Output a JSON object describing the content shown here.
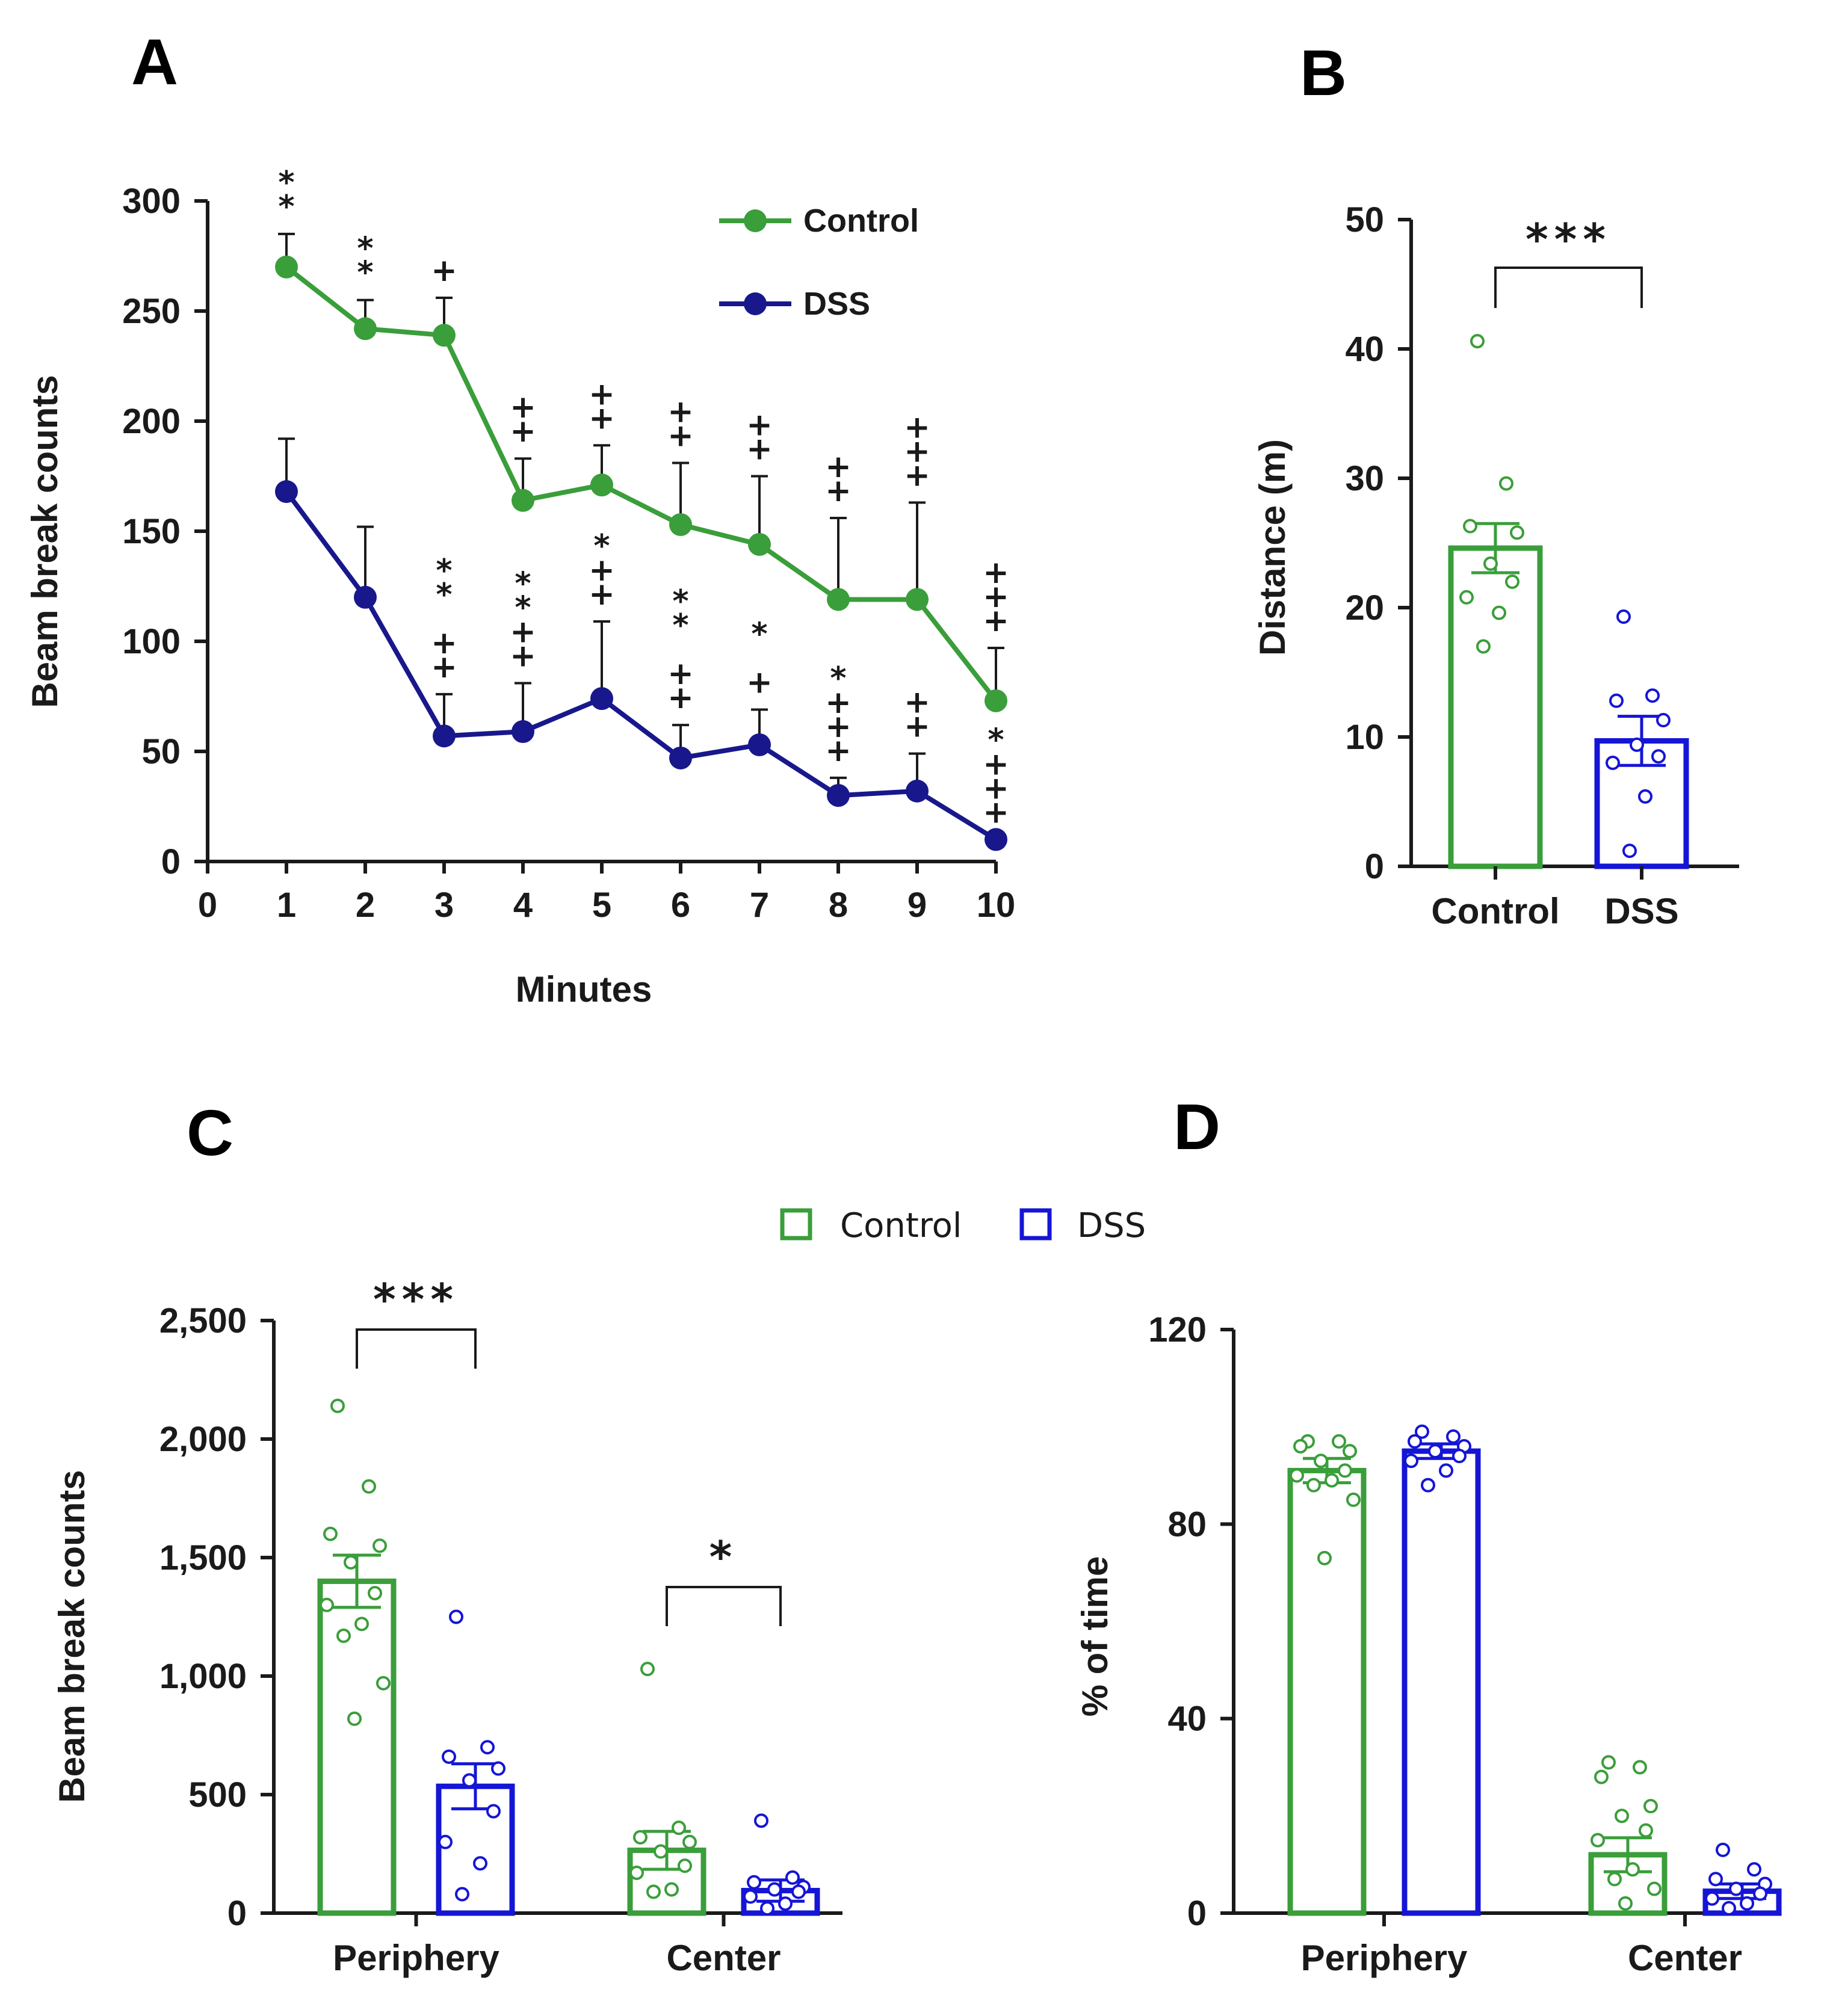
{
  "colors": {
    "control": "#3a9e3a",
    "dss": "#18188c",
    "dss_bar": "#1515d6",
    "axis": "#1a1a1a"
  },
  "chart_data": [
    {
      "panel": "A",
      "type": "line",
      "xlabel": "Minutes",
      "ylabel": "Beam break counts",
      "xlim": [
        0,
        10
      ],
      "ylim": [
        0,
        300
      ],
      "x_ticks": [
        "0",
        "1",
        "2",
        "3",
        "4",
        "5",
        "6",
        "7",
        "8",
        "9",
        "10"
      ],
      "y_ticks": [
        "0",
        "50",
        "100",
        "150",
        "200",
        "250",
        "300"
      ],
      "legend": {
        "placement": "top-right"
      },
      "x": [
        1,
        2,
        3,
        4,
        5,
        6,
        7,
        8,
        9,
        10
      ],
      "series": [
        {
          "name": "Control",
          "color": "#3a9e3a",
          "values": [
            270,
            242,
            239,
            164,
            171,
            153,
            144,
            119,
            119,
            73
          ],
          "sem": [
            15,
            13,
            17,
            19,
            18,
            28,
            31,
            37,
            44,
            24
          ]
        },
        {
          "name": "DSS",
          "color": "#18188c",
          "values": [
            168,
            120,
            57,
            59,
            74,
            47,
            53,
            30,
            32,
            10
          ],
          "sem": [
            24,
            32,
            19,
            22,
            35,
            15,
            16,
            8,
            17,
            0
          ]
        }
      ],
      "annotations": [
        {
          "x": 1,
          "lines": [
            "*",
            "*"
          ],
          "near": "control"
        },
        {
          "x": 2,
          "lines": [
            "*",
            "*"
          ],
          "near": "control"
        },
        {
          "x": 3,
          "lines": [
            "+"
          ],
          "near": "control"
        },
        {
          "x": 3,
          "lines": [
            "*",
            "*",
            "",
            "+",
            "+"
          ],
          "near": "dss"
        },
        {
          "x": 4,
          "lines": [
            "+",
            "+"
          ],
          "near": "control"
        },
        {
          "x": 4,
          "lines": [
            "*",
            "*",
            "+",
            "+"
          ],
          "near": "dss"
        },
        {
          "x": 5,
          "lines": [
            "+",
            "+"
          ],
          "near": "control"
        },
        {
          "x": 5,
          "lines": [
            "*",
            "+",
            "+"
          ],
          "near": "dss"
        },
        {
          "x": 6,
          "lines": [
            "+",
            "+"
          ],
          "near": "control"
        },
        {
          "x": 6,
          "lines": [
            "*",
            "*",
            "",
            "+",
            "+"
          ],
          "near": "dss"
        },
        {
          "x": 7,
          "lines": [
            "+",
            "+"
          ],
          "near": "control"
        },
        {
          "x": 7,
          "lines": [
            "*",
            "",
            "+"
          ],
          "near": "dss"
        },
        {
          "x": 8,
          "lines": [
            "+",
            "+"
          ],
          "near": "control"
        },
        {
          "x": 8,
          "lines": [
            "*",
            "+",
            "+",
            "+"
          ],
          "near": "dss"
        },
        {
          "x": 9,
          "lines": [
            "+",
            "+",
            "+"
          ],
          "near": "control"
        },
        {
          "x": 9,
          "lines": [
            "+",
            "+"
          ],
          "near": "dss"
        },
        {
          "x": 10,
          "lines": [
            "+",
            "+",
            "+"
          ],
          "near": "control"
        },
        {
          "x": 10,
          "lines": [
            "*",
            "+",
            "+",
            "+"
          ],
          "near": "dss"
        }
      ]
    },
    {
      "panel": "B",
      "type": "bar",
      "ylabel": "Distance (m)",
      "ylim": [
        0,
        50
      ],
      "y_ticks": [
        "0",
        "10",
        "20",
        "30",
        "40",
        "50"
      ],
      "categories": [
        "Control",
        "DSS"
      ],
      "series": [
        {
          "values": [
            24.6,
            9.7
          ],
          "sem": [
            1.9,
            1.9
          ]
        }
      ],
      "points": [
        [
          40.6,
          29.6,
          26.3,
          25.8,
          23.4,
          22.0,
          20.8,
          19.6,
          17.0
        ],
        [
          19.3,
          13.2,
          12.8,
          11.3,
          9.4,
          8.5,
          8.0,
          5.4,
          1.2
        ]
      ],
      "significance": [
        {
          "between": [
            "Control",
            "DSS"
          ],
          "label": "***"
        }
      ]
    },
    {
      "panel": "C",
      "type": "bar",
      "ylabel": "Beam break counts",
      "ylim": [
        0,
        2500
      ],
      "y_ticks": [
        "0",
        "500",
        "1,000",
        "1,500",
        "2,000",
        "2,500"
      ],
      "categories": [
        "Periphery",
        "Center"
      ],
      "series": [
        {
          "name": "Control",
          "values": [
            1400,
            265
          ],
          "sem": [
            110,
            80
          ]
        },
        {
          "name": "DSS",
          "values": [
            535,
            95
          ],
          "sem": [
            95,
            45
          ]
        }
      ],
      "points": {
        "Control": [
          [
            2140,
            1800,
            1600,
            1550,
            1480,
            1350,
            1300,
            1220,
            1170,
            970,
            820
          ],
          [
            1030,
            360,
            320,
            300,
            260,
            200,
            170,
            100,
            90
          ]
        ],
        "DSS": [
          [
            1250,
            700,
            660,
            610,
            560,
            430,
            300,
            210,
            80
          ],
          [
            390,
            150,
            130,
            110,
            100,
            90,
            70,
            40,
            20
          ]
        ]
      },
      "significance": [
        {
          "group": "Periphery",
          "label": "***"
        },
        {
          "group": "Center",
          "label": "*"
        }
      ]
    },
    {
      "panel": "D",
      "type": "bar",
      "ylabel": "% of time",
      "ylim": [
        0,
        120
      ],
      "y_ticks": [
        "0",
        "40",
        "80",
        "120"
      ],
      "categories": [
        "Periphery",
        "Center"
      ],
      "series": [
        {
          "name": "Control",
          "values": [
            91,
            12
          ],
          "sem": [
            2.5,
            3.5
          ]
        },
        {
          "name": "DSS",
          "values": [
            95,
            4.5
          ],
          "sem": [
            1.5,
            1.5
          ]
        }
      ],
      "points": {
        "Control": [
          [
            97,
            97,
            96,
            95,
            93,
            91,
            90,
            89,
            88,
            85,
            73
          ],
          [
            31,
            30,
            28,
            22,
            20,
            17,
            15,
            9,
            7,
            5,
            2
          ]
        ],
        "DSS": [
          [
            99,
            98,
            97,
            96,
            95,
            94,
            93,
            91,
            88
          ],
          [
            13,
            9,
            7,
            6,
            5,
            4,
            3,
            2,
            1
          ]
        ]
      }
    }
  ],
  "legend_cd": [
    "Control",
    "DSS"
  ],
  "panel_labels": [
    "A",
    "B",
    "C",
    "D"
  ]
}
